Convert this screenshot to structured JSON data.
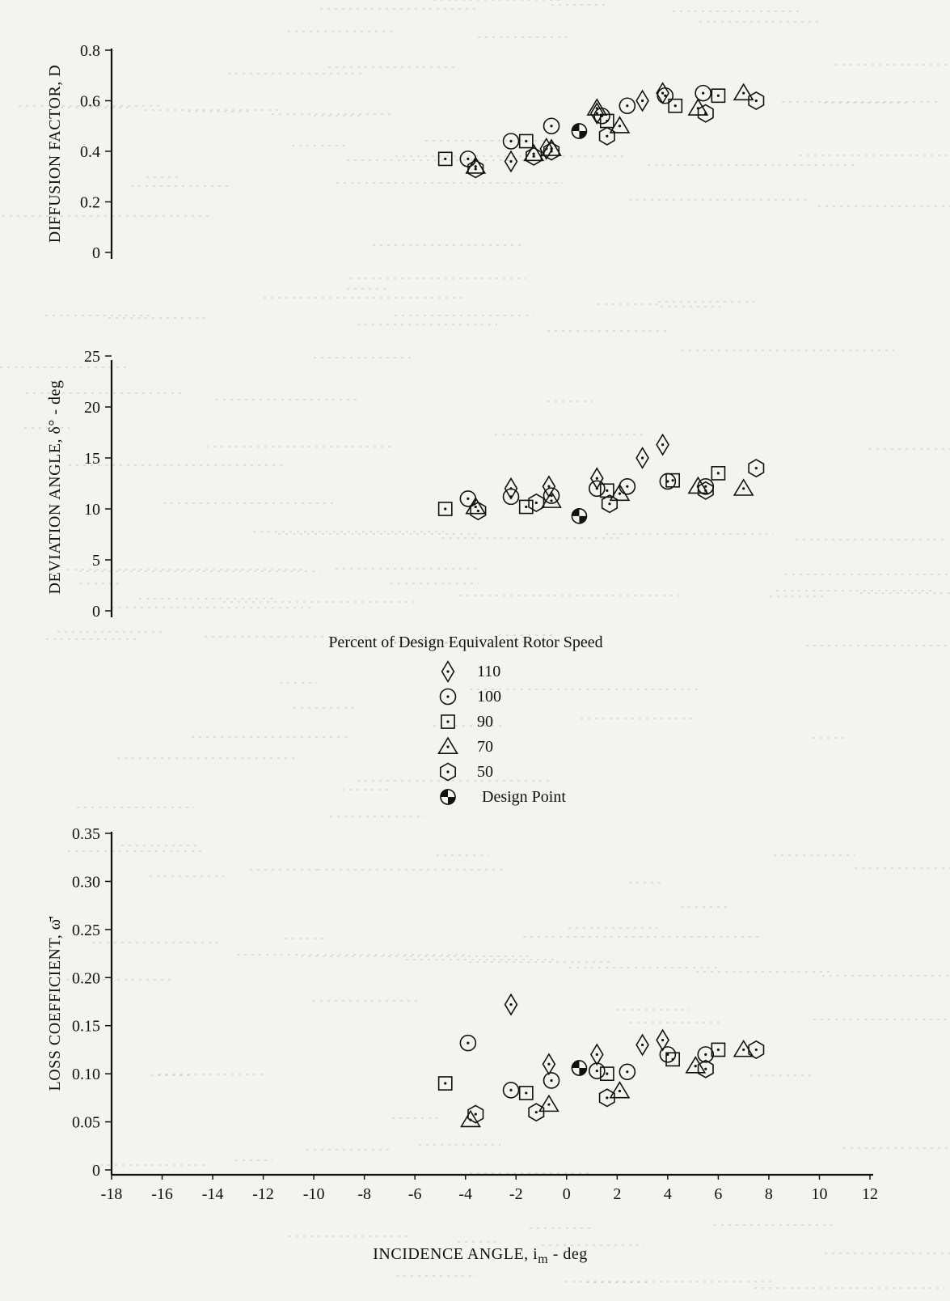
{
  "chart_data": [
    {
      "type": "scatter",
      "panel": "top",
      "ylabel": "DIFFUSION FACTOR, D",
      "xlim": [
        -18,
        12
      ],
      "ylim": [
        0,
        0.8
      ],
      "yticks": [
        0,
        0.2,
        0.4,
        0.6,
        0.8
      ],
      "ytick_labels": [
        "0",
        "0.2",
        "0.4",
        "0.6",
        "0.8"
      ],
      "grid": false,
      "series": [
        {
          "marker": "diamond",
          "points": [
            [
              -2.2,
              0.36
            ],
            [
              -0.8,
              0.41
            ],
            [
              1.2,
              0.55
            ],
            [
              3.0,
              0.6
            ],
            [
              3.8,
              0.63
            ]
          ]
        },
        {
          "marker": "circle",
          "points": [
            [
              -3.9,
              0.37
            ],
            [
              -2.2,
              0.44
            ],
            [
              -0.6,
              0.5
            ],
            [
              1.4,
              0.54
            ],
            [
              2.4,
              0.58
            ],
            [
              3.9,
              0.62
            ],
            [
              5.4,
              0.63
            ]
          ]
        },
        {
          "marker": "square",
          "points": [
            [
              -4.8,
              0.37
            ],
            [
              -1.6,
              0.44
            ],
            [
              1.6,
              0.52
            ],
            [
              4.3,
              0.58
            ],
            [
              6.0,
              0.62
            ]
          ]
        },
        {
          "marker": "triangle",
          "points": [
            [
              -3.6,
              0.34
            ],
            [
              -1.3,
              0.39
            ],
            [
              -0.6,
              0.41
            ],
            [
              1.2,
              0.57
            ],
            [
              2.1,
              0.5
            ],
            [
              5.2,
              0.57
            ],
            [
              7.0,
              0.63
            ]
          ]
        },
        {
          "marker": "hexagon",
          "points": [
            [
              -3.6,
              0.33
            ],
            [
              -1.3,
              0.38
            ],
            [
              -0.6,
              0.4
            ],
            [
              1.6,
              0.46
            ],
            [
              5.5,
              0.55
            ],
            [
              7.5,
              0.6
            ]
          ]
        },
        {
          "marker": "design-point",
          "points": [
            [
              0.5,
              0.48
            ]
          ]
        }
      ]
    },
    {
      "type": "scatter",
      "panel": "middle",
      "ylabel": "DEVIATION ANGLE, δ° - deg",
      "xlim": [
        -18,
        12
      ],
      "ylim": [
        0,
        25
      ],
      "yticks": [
        0,
        5,
        10,
        15,
        20,
        25
      ],
      "ytick_labels": [
        "0",
        "5",
        "10",
        "15",
        "20",
        "25"
      ],
      "grid": false,
      "series": [
        {
          "marker": "diamond",
          "points": [
            [
              -2.2,
              12
            ],
            [
              -0.7,
              12.2
            ],
            [
              1.2,
              13
            ],
            [
              3.0,
              15
            ],
            [
              3.8,
              16.3
            ]
          ]
        },
        {
          "marker": "circle",
          "points": [
            [
              -3.9,
              11
            ],
            [
              -2.2,
              11.2
            ],
            [
              -0.6,
              11.3
            ],
            [
              1.2,
              12
            ],
            [
              2.4,
              12.2
            ],
            [
              4.0,
              12.7
            ],
            [
              5.5,
              12.2
            ]
          ]
        },
        {
          "marker": "square",
          "points": [
            [
              -4.8,
              10
            ],
            [
              -1.6,
              10.2
            ],
            [
              1.6,
              11.8
            ],
            [
              4.2,
              12.8
            ],
            [
              6.0,
              13.5
            ]
          ]
        },
        {
          "marker": "triangle",
          "points": [
            [
              -3.6,
              10.2
            ],
            [
              -0.6,
              10.8
            ],
            [
              2.1,
              11.5
            ],
            [
              5.2,
              12.2
            ],
            [
              7.0,
              12
            ]
          ]
        },
        {
          "marker": "hexagon",
          "points": [
            [
              -3.5,
              9.8
            ],
            [
              -1.2,
              10.6
            ],
            [
              1.7,
              10.5
            ],
            [
              5.5,
              11.8
            ],
            [
              7.5,
              14
            ]
          ]
        },
        {
          "marker": "design-point",
          "points": [
            [
              0.5,
              9.3
            ]
          ]
        }
      ]
    },
    {
      "type": "scatter",
      "panel": "bottom",
      "ylabel": "LOSS COEFFICIENT, ω̄'",
      "xlabel": "INCIDENCE ANGLE, i",
      "xlabel_subscript": "m",
      "xlabel_suffix": " - deg",
      "xlim": [
        -18,
        12
      ],
      "ylim": [
        0,
        0.35
      ],
      "xticks": [
        -18,
        -16,
        -14,
        -12,
        -10,
        -8,
        -6,
        -4,
        -2,
        0,
        2,
        4,
        6,
        8,
        10,
        12
      ],
      "xtick_labels": [
        "-18",
        "-16",
        "-14",
        "-12",
        "-10",
        "-8",
        "-6",
        "-4",
        "-2",
        "0",
        "2",
        "4",
        "6",
        "8",
        "10",
        "12"
      ],
      "yticks": [
        0,
        0.05,
        0.1,
        0.15,
        0.2,
        0.25,
        0.3,
        0.35
      ],
      "ytick_labels": [
        "0",
        "0.05",
        "0.10",
        "0.15",
        "0.20",
        "0.25",
        "0.30",
        "0.35"
      ],
      "grid": false,
      "series": [
        {
          "marker": "diamond",
          "points": [
            [
              -2.2,
              0.172
            ],
            [
              -0.7,
              0.11
            ],
            [
              1.2,
              0.12
            ],
            [
              3.0,
              0.13
            ],
            [
              3.8,
              0.135
            ]
          ]
        },
        {
          "marker": "circle",
          "points": [
            [
              -3.9,
              0.132
            ],
            [
              -2.2,
              0.083
            ],
            [
              -0.6,
              0.093
            ],
            [
              1.2,
              0.103
            ],
            [
              2.4,
              0.102
            ],
            [
              4.0,
              0.12
            ],
            [
              5.5,
              0.12
            ]
          ]
        },
        {
          "marker": "square",
          "points": [
            [
              -4.8,
              0.09
            ],
            [
              -1.6,
              0.08
            ],
            [
              1.6,
              0.1
            ],
            [
              4.2,
              0.115
            ],
            [
              6.0,
              0.125
            ]
          ]
        },
        {
          "marker": "triangle",
          "points": [
            [
              -3.8,
              0.052
            ],
            [
              -0.7,
              0.068
            ],
            [
              2.1,
              0.082
            ],
            [
              5.1,
              0.108
            ],
            [
              7.0,
              0.125
            ]
          ]
        },
        {
          "marker": "hexagon",
          "points": [
            [
              -3.6,
              0.058
            ],
            [
              -1.2,
              0.06
            ],
            [
              1.6,
              0.075
            ],
            [
              5.5,
              0.105
            ],
            [
              7.5,
              0.125
            ]
          ]
        },
        {
          "marker": "design-point",
          "points": [
            [
              0.5,
              0.106
            ]
          ]
        }
      ]
    }
  ],
  "legend": {
    "title": "Percent of Design Equivalent Rotor Speed",
    "placement": "center",
    "entries": [
      {
        "marker": "diamond",
        "label": "110"
      },
      {
        "marker": "circle",
        "label": "100"
      },
      {
        "marker": "square",
        "label": "90"
      },
      {
        "marker": "triangle",
        "label": "70"
      },
      {
        "marker": "hexagon",
        "label": "50"
      },
      {
        "marker": "design-point",
        "label": "Design Point"
      }
    ]
  }
}
